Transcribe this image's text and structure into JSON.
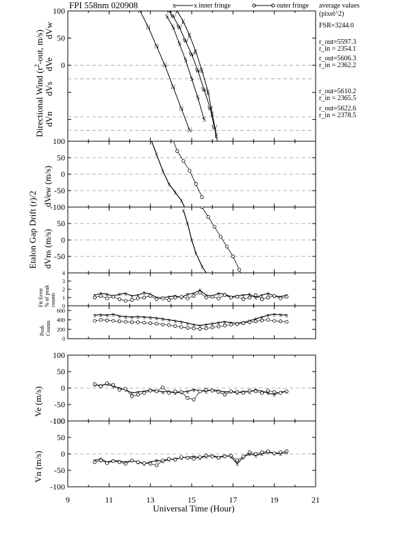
{
  "header": {
    "title": "FPI 558nm 020908",
    "legend_inner": "inner fringe",
    "legend_outer": "outer fringe",
    "avg_line1": "average values",
    "avg_line2": "(pixel^2)",
    "fsr": "FSR=3244.0",
    "r_out_1": "r_out=5597.3",
    "r_in_1": "r_in = 2354.1",
    "r_out_2": "r_out=5606.3",
    "r_in_2": "r_in = 2362.2",
    "r_out_3": "r_out=5610.2",
    "r_in_3": "r_in = 2365.5",
    "r_out_4": "r_out=5622.6",
    "r_in_4": "r_in = 2378.5"
  },
  "labels": {
    "wind_main": "Directional Wind (r",
    "wind_exp": "2",
    "wind_end": "-out, m/s)",
    "dVw": "dVw",
    "dVe": "dVe",
    "dVs": "dVs",
    "dVn": "dVn",
    "gap_main": "Etalon Gap Drift (r",
    "gap_end": ")/2",
    "dVew": "dVew (m/s)",
    "dVns": "dVns (m/s)",
    "fit_error": "Fit Error",
    "fit_pct": "% of peak",
    "fit_counts": "counts",
    "peak": "Peak",
    "peak_counts": "Counts",
    "ve": "Ve (m/s)",
    "vn": "Vn (m/s)",
    "xlabel": "Universal Time (Hour)"
  },
  "chart_data": {
    "type": "line",
    "xlim": [
      9,
      21
    ],
    "x_ticks": [
      "9",
      "11",
      "13",
      "15",
      "17",
      "19",
      "21"
    ],
    "panels": {
      "directional_wind": {
        "y_ticks": [
          "100",
          "50",
          "0",
          "",
          ""
        ],
        "series": [
          {
            "marker": "W",
            "x": [
              13.9,
              14.1,
              14.4,
              14.7,
              15.0,
              15.3,
              15.6,
              15.9,
              16.1,
              16.3,
              16.5
            ],
            "y": [
              100,
              90,
              70,
              45,
              20,
              -10,
              -45,
              -80,
              -115,
              -150,
              -180
            ]
          },
          {
            "marker": "E",
            "x": [
              14.3,
              14.6,
              14.9,
              15.2,
              15.5,
              15.8,
              16.0,
              16.2
            ],
            "y": [
              100,
              80,
              55,
              25,
              -10,
              -50,
              -90,
              -130
            ]
          },
          {
            "marker": "S",
            "x": [
              13.8,
              14.1,
              14.4,
              14.7,
              15.0,
              15.3,
              15.6
            ],
            "y": [
              90,
              70,
              40,
              10,
              -25,
              -60,
              -100
            ]
          },
          {
            "marker": "N",
            "x": [
              12.5,
              12.9,
              13.3,
              13.7,
              14.1,
              14.5,
              14.9
            ],
            "y": [
              100,
              70,
              35,
              0,
              -40,
              -80,
              -120
            ]
          }
        ]
      },
      "dVew": {
        "y_ticks": [
          "100",
          "50",
          "0",
          "-50",
          "-100"
        ],
        "series": [
          {
            "name": "inner fringe",
            "x": [
              12.7,
              13.0,
              13.3,
              13.6,
              13.9,
              14.2,
              14.5,
              14.8,
              15.1
            ],
            "y": [
              150,
              110,
              60,
              10,
              -30,
              -55,
              -80,
              -120,
              -150
            ]
          },
          {
            "name": "outer fringe",
            "x": [
              13.7,
              14.0,
              14.3,
              14.6,
              14.9,
              15.2,
              15.5
            ],
            "y": [
              160,
              120,
              70,
              40,
              10,
              -30,
              -70
            ]
          }
        ]
      },
      "dVns": {
        "y_ticks": [
          "",
          "50",
          "0",
          "-50",
          ""
        ],
        "series": [
          {
            "name": "inner fringe",
            "x": [
              14.6,
              14.8,
              15.0,
              15.2,
              15.5,
              15.8,
              16.1,
              16.4
            ],
            "y": [
              90,
              50,
              0,
              -40,
              -80,
              -110,
              -130,
              -150
            ]
          },
          {
            "name": "outer fringe",
            "x": [
              15.5,
              15.8,
              16.1,
              16.4,
              16.7,
              17.0,
              17.3,
              17.6
            ],
            "y": [
              100,
              70,
              40,
              10,
              -20,
              -50,
              -90,
              -130
            ]
          }
        ]
      },
      "fit_error": {
        "y_ticks": [
          "4",
          "3",
          "2",
          "1",
          "0"
        ],
        "x": [
          10.3,
          10.6,
          10.9,
          11.2,
          11.5,
          11.8,
          12.1,
          12.4,
          12.7,
          13.0,
          13.3,
          13.6,
          13.9,
          14.2,
          14.5,
          14.8,
          15.1,
          15.4,
          15.7,
          16.0,
          16.3,
          16.6,
          16.9,
          17.2,
          17.5,
          17.8,
          18.1,
          18.4,
          18.7,
          19.0,
          19.3,
          19.6
        ],
        "series": [
          {
            "name": "inner fringe",
            "y": [
              1.3,
              1.5,
              1.4,
              1.2,
              1.4,
              1.5,
              1.2,
              1.3,
              1.6,
              1.4,
              1.0,
              1.0,
              1.1,
              1.2,
              1.0,
              1.4,
              1.5,
              1.9,
              1.3,
              1.2,
              1.5,
              1.4,
              1.1,
              1.2,
              1.3,
              1.4,
              1.0,
              1.3,
              1.5,
              1.2,
              1.1,
              1.3
            ]
          },
          {
            "name": "outer fringe",
            "y": [
              1.0,
              1.2,
              0.9,
              1.1,
              0.8,
              0.6,
              0.7,
              0.9,
              1.0,
              1.2,
              0.8,
              0.9,
              0.7,
              1.0,
              1.1,
              0.9,
              1.2,
              1.6,
              1.0,
              1.1,
              0.9,
              1.3,
              1.0,
              1.1,
              0.8,
              1.0,
              1.3,
              0.8,
              1.0,
              1.2,
              0.9,
              1.1
            ]
          }
        ]
      },
      "peak_counts": {
        "y_ticks": [
          "600",
          "400",
          "200",
          "0"
        ],
        "x": [
          10.3,
          10.6,
          10.9,
          11.2,
          11.5,
          11.8,
          12.1,
          12.4,
          12.7,
          13.0,
          13.3,
          13.6,
          13.9,
          14.2,
          14.5,
          14.8,
          15.1,
          15.4,
          15.7,
          16.0,
          16.3,
          16.6,
          16.9,
          17.2,
          17.5,
          17.8,
          18.1,
          18.4,
          18.7,
          19.0,
          19.3,
          19.6
        ],
        "series": [
          {
            "name": "inner fringe",
            "y": [
              500,
              510,
              500,
              520,
              480,
              470,
              460,
              470,
              460,
              450,
              440,
              420,
              400,
              380,
              360,
              330,
              300,
              280,
              300,
              320,
              340,
              360,
              340,
              330,
              350,
              380,
              420,
              460,
              500,
              520,
              510,
              500
            ]
          },
          {
            "name": "outer fringe",
            "y": [
              380,
              400,
              390,
              380,
              370,
              360,
              350,
              350,
              340,
              330,
              320,
              300,
              290,
              270,
              250,
              230,
              220,
              210,
              220,
              240,
              260,
              280,
              300,
              310,
              330,
              350,
              370,
              390,
              400,
              380,
              370,
              360
            ]
          }
        ]
      },
      "ve": {
        "y_ticks": [
          "100",
          "50",
          "0",
          "-50",
          "-100"
        ],
        "x": [
          10.3,
          10.6,
          10.9,
          11.2,
          11.5,
          11.8,
          12.1,
          12.4,
          12.7,
          13.0,
          13.3,
          13.6,
          13.9,
          14.2,
          14.5,
          14.8,
          15.1,
          15.4,
          15.7,
          16.0,
          16.3,
          16.6,
          16.9,
          17.2,
          17.5,
          17.8,
          18.1,
          18.4,
          18.7,
          19.0,
          19.3,
          19.6
        ],
        "series": [
          {
            "name": "inner fringe",
            "y": [
              10,
              8,
              12,
              5,
              0,
              -5,
              -15,
              -12,
              -10,
              -5,
              -8,
              -12,
              -10,
              -15,
              -12,
              -10,
              -5,
              -8,
              -10,
              -5,
              -8,
              -12,
              -10,
              -15,
              -10,
              -12,
              -5,
              -10,
              -15,
              -20,
              -12,
              -10
            ]
          },
          {
            "name": "outer fringe",
            "y": [
              12,
              5,
              15,
              10,
              -5,
              -2,
              -25,
              -20,
              -15,
              -8,
              -10,
              2,
              -15,
              -10,
              -12,
              -30,
              -35,
              -10,
              -5,
              -8,
              -12,
              -20,
              -10,
              -12,
              -15,
              -8,
              -10,
              -15,
              -8,
              -12,
              -15,
              -10
            ]
          }
        ]
      },
      "vn": {
        "y_ticks": [
          "100",
          "50",
          "0",
          "-50",
          "-100"
        ],
        "x": [
          10.3,
          10.6,
          10.9,
          11.2,
          11.5,
          11.8,
          12.1,
          12.4,
          12.7,
          13.0,
          13.3,
          13.6,
          13.9,
          14.2,
          14.5,
          14.8,
          15.1,
          15.4,
          15.7,
          16.0,
          16.3,
          16.6,
          16.9,
          17.2,
          17.5,
          17.8,
          18.1,
          18.4,
          18.7,
          19.0,
          19.3,
          19.6
        ],
        "series": [
          {
            "name": "inner fringe",
            "y": [
              -20,
              -15,
              -25,
              -20,
              -22,
              -25,
              -20,
              -25,
              -30,
              -25,
              -20,
              -22,
              -18,
              -15,
              -12,
              -10,
              -8,
              -12,
              -8,
              -5,
              -10,
              -5,
              -8,
              -30,
              -10,
              0,
              -5,
              0,
              5,
              2,
              0,
              5
            ]
          },
          {
            "name": "outer fringe",
            "y": [
              -25,
              -20,
              -28,
              -22,
              -25,
              -30,
              -20,
              -25,
              -28,
              -30,
              -35,
              -20,
              -15,
              -18,
              -10,
              -12,
              -15,
              -10,
              -5,
              -8,
              -12,
              -8,
              -5,
              -20,
              -8,
              5,
              0,
              5,
              8,
              2,
              5,
              8
            ]
          }
        ]
      }
    }
  }
}
